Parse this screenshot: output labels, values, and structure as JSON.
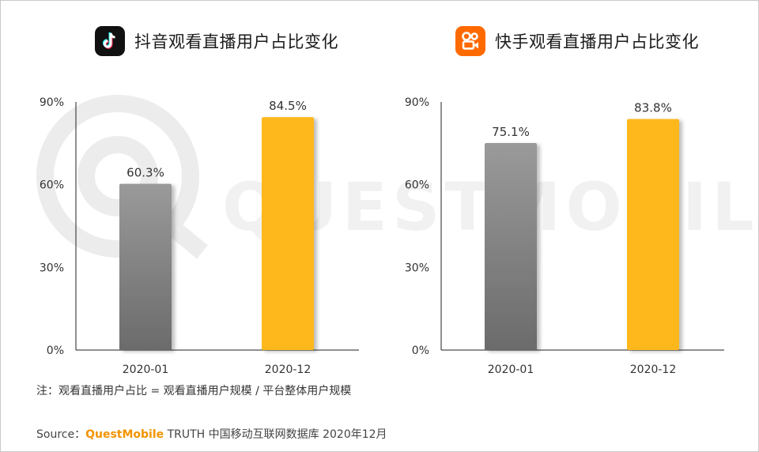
{
  "chart_data": [
    {
      "type": "bar",
      "title": "抖音观看直播用户占比变化",
      "app_icon": "douyin-icon",
      "categories": [
        "2020-01",
        "2020-12"
      ],
      "values": [
        60.3,
        84.5
      ],
      "value_labels": [
        "60.3%",
        "84.5%"
      ],
      "bar_colors": [
        "#8a8a8a",
        "#ffb81c"
      ],
      "yticks": [
        "0%",
        "30%",
        "60%",
        "90%"
      ],
      "ylim": [
        0,
        90
      ],
      "grid": false
    },
    {
      "type": "bar",
      "title": "快手观看直播用户占比变化",
      "app_icon": "kuaishou-icon",
      "categories": [
        "2020-01",
        "2020-12"
      ],
      "values": [
        75.1,
        83.8
      ],
      "value_labels": [
        "75.1%",
        "83.8%"
      ],
      "bar_colors": [
        "#8a8a8a",
        "#ffb81c"
      ],
      "yticks": [
        "0%",
        "30%",
        "60%",
        "90%"
      ],
      "ylim": [
        0,
        90
      ],
      "grid": false
    }
  ],
  "footnote": "注：观看直播用户占比 = 观看直播用户规模 / 平台整体用户规模",
  "source": {
    "prefix": "Source：",
    "brand": "QuestMobile",
    "text": " TRUTH 中国移动互联网数据库 2020年12月"
  },
  "watermark": "QUESTMOBILE",
  "colors": {
    "accent": "#ffb81c",
    "gray_bar": "#8a8a8a",
    "brand": "#f29400",
    "kuaishou": "#ff6a00"
  }
}
